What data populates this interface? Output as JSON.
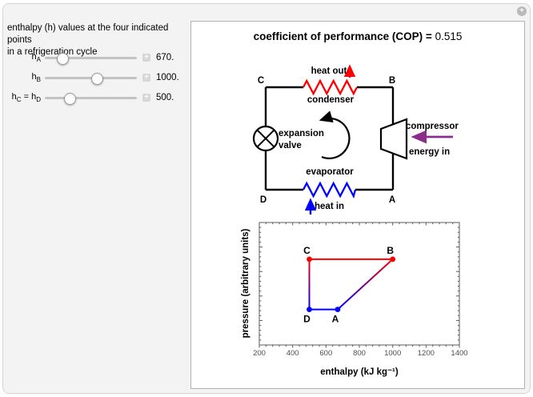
{
  "widget": {
    "plus_symbol": "+"
  },
  "controls": {
    "description_line1": "enthalpy (h) values at the four indicated points",
    "description_line2": "in a refrigeration cycle",
    "stepper_symbol": "+",
    "sliders": [
      {
        "b1": "h",
        "s1": "A",
        "b2": "",
        "s2": "",
        "value": "670.",
        "fraction": 0.15
      },
      {
        "b1": "h",
        "s1": "B",
        "b2": "",
        "s2": "",
        "value": "1000.",
        "fraction": 0.57
      },
      {
        "b1": "h",
        "s1": "C",
        "b2": " = h",
        "s2": "D",
        "value": "500.",
        "fraction": 0.24
      }
    ]
  },
  "result": {
    "label": "coefficient of performance (COP) = ",
    "value": "0.515"
  },
  "diagram": {
    "labels": {
      "heat_out": "heat out",
      "condenser": "condenser",
      "point_c": "C",
      "point_b": "B",
      "expansion_line1": "expansion",
      "expansion_line2": "valve",
      "compressor": "compressor",
      "energy_in": "energy in",
      "evaporator": "evaporator",
      "heat_in": "heat in",
      "point_d": "D",
      "point_a": "A"
    },
    "colors": {
      "hot": "#ff0000",
      "cold": "#0000ff",
      "energy": "#8b2d8b",
      "pipe": "#000000"
    }
  },
  "chart_data": {
    "type": "line",
    "title": "",
    "xlabel": "enthalpy (kJ kg⁻¹)",
    "ylabel": "pressure (arbitrary units)",
    "xlim": [
      200,
      1400
    ],
    "ylim": [
      0,
      1
    ],
    "xticks": [
      200,
      400,
      600,
      800,
      1000,
      1200,
      1400
    ],
    "x_minor_step": 40,
    "y_minor_step": 0.04,
    "y_major_step": 0.2,
    "grid": false,
    "legend": "none",
    "points": [
      {
        "label": "A",
        "enthalpy": 670,
        "pressure": 0.29,
        "color": "#0000ff",
        "label_position": "below"
      },
      {
        "label": "B",
        "enthalpy": 1000,
        "pressure": 0.7,
        "color": "#ff0000",
        "label_position": "above"
      },
      {
        "label": "C",
        "enthalpy": 500,
        "pressure": 0.7,
        "color": "#ff0000",
        "label_position": "above"
      },
      {
        "label": "D",
        "enthalpy": 500,
        "pressure": 0.29,
        "color": "#0000ff",
        "label_position": "below"
      }
    ],
    "segments": [
      {
        "from": "D",
        "to": "A",
        "style": "solid",
        "color": "#0000ff"
      },
      {
        "from": "A",
        "to": "B",
        "style": "gradient",
        "from_color": "#0000ff",
        "to_color": "#ff0000"
      },
      {
        "from": "B",
        "to": "C",
        "style": "solid",
        "color": "#ff0000"
      },
      {
        "from": "C",
        "to": "D",
        "style": "gradient",
        "from_color": "#ff0000",
        "to_color": "#0000ff"
      }
    ]
  }
}
